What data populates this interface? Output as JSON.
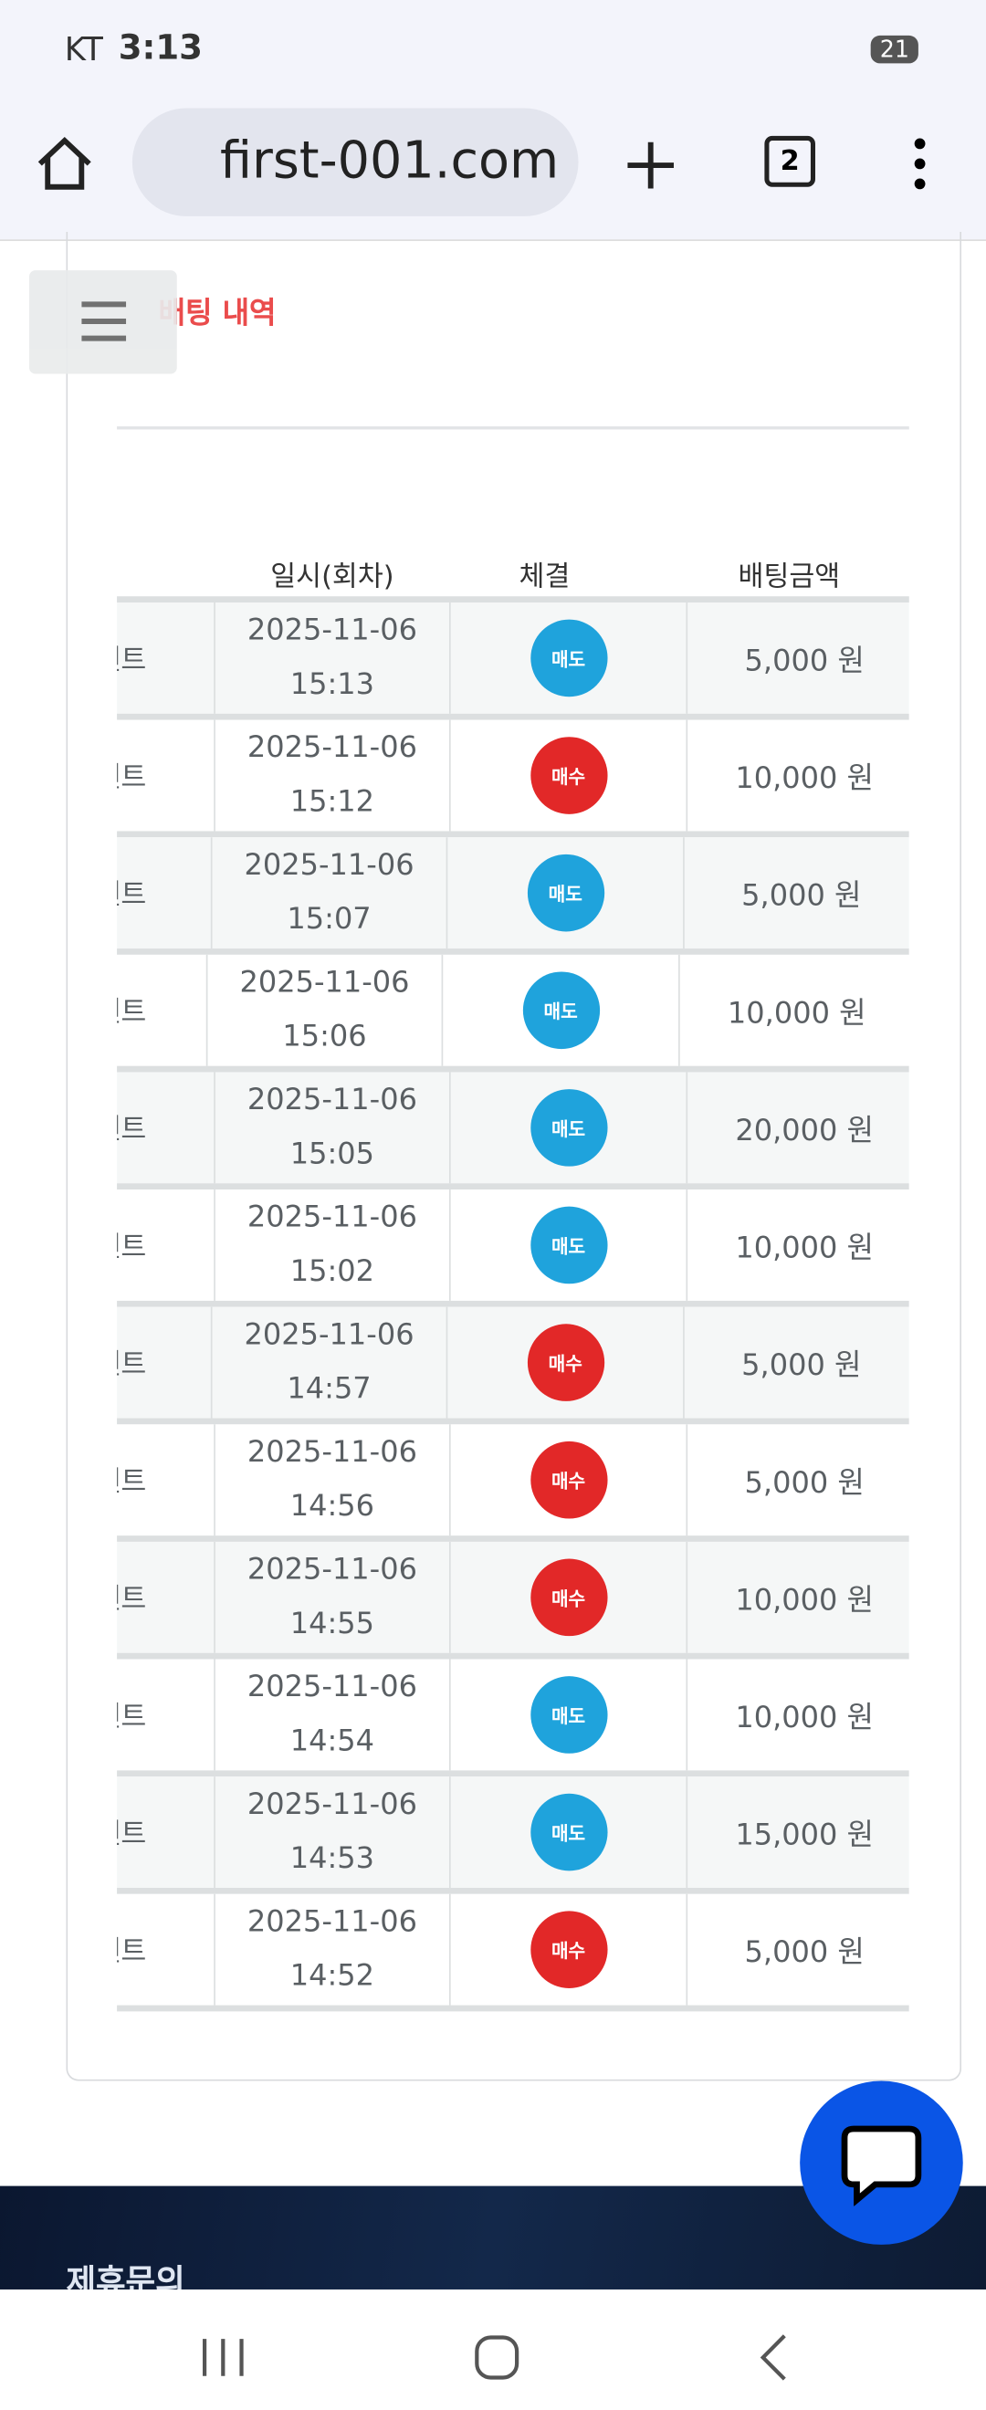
{
  "status_bar": {
    "carrier": "KT",
    "time": "3:13",
    "battery": "21"
  },
  "browser": {
    "url": "first-001.com",
    "tab_count": "2"
  },
  "section": {
    "title": "배팅 내역"
  },
  "table": {
    "headers": [
      "일시(회차)",
      "체결",
      "배팅금액"
    ],
    "rows": [
      {
        "name": "넨트",
        "date": "2025-11-06",
        "time": "15:13",
        "status": "매도",
        "status_color": "#1fa3dc",
        "amount": "5,000 원"
      },
      {
        "name": "넨트",
        "date": "2025-11-06",
        "time": "15:12",
        "status": "매수",
        "status_color": "#e22828",
        "amount": "10,000 원"
      },
      {
        "name": "넨트",
        "date": "2025-11-06",
        "time": "15:07",
        "status": "매도",
        "status_color": "#1fa3dc",
        "amount": "5,000 원"
      },
      {
        "name": "넨트",
        "date": "2025-11-06",
        "time": "15:06",
        "status": "매도",
        "status_color": "#1fa3dc",
        "amount": "10,000 원"
      },
      {
        "name": "넨트",
        "date": "2025-11-06",
        "time": "15:05",
        "status": "매도",
        "status_color": "#1fa3dc",
        "amount": "20,000 원"
      },
      {
        "name": "넨트",
        "date": "2025-11-06",
        "time": "15:02",
        "status": "매도",
        "status_color": "#1fa3dc",
        "amount": "10,000 원"
      },
      {
        "name": "넨트",
        "date": "2025-11-06",
        "time": "14:57",
        "status": "매수",
        "status_color": "#e22828",
        "amount": "5,000 원"
      },
      {
        "name": "넨트",
        "date": "2025-11-06",
        "time": "14:56",
        "status": "매수",
        "status_color": "#e22828",
        "amount": "5,000 원"
      },
      {
        "name": "넨트",
        "date": "2025-11-06",
        "time": "14:55",
        "status": "매수",
        "status_color": "#e22828",
        "amount": "10,000 원"
      },
      {
        "name": "넨트",
        "date": "2025-11-06",
        "time": "14:54",
        "status": "매도",
        "status_color": "#1fa3dc",
        "amount": "10,000 원"
      },
      {
        "name": "넨트",
        "date": "2025-11-06",
        "time": "14:53",
        "status": "매도",
        "status_color": "#1fa3dc",
        "amount": "15,000 원"
      },
      {
        "name": "넨트",
        "date": "2025-11-06",
        "time": "14:52",
        "status": "매수",
        "status_color": "#e22828",
        "amount": "5,000 원"
      }
    ]
  },
  "footer": {
    "title": "제휴문의"
  }
}
